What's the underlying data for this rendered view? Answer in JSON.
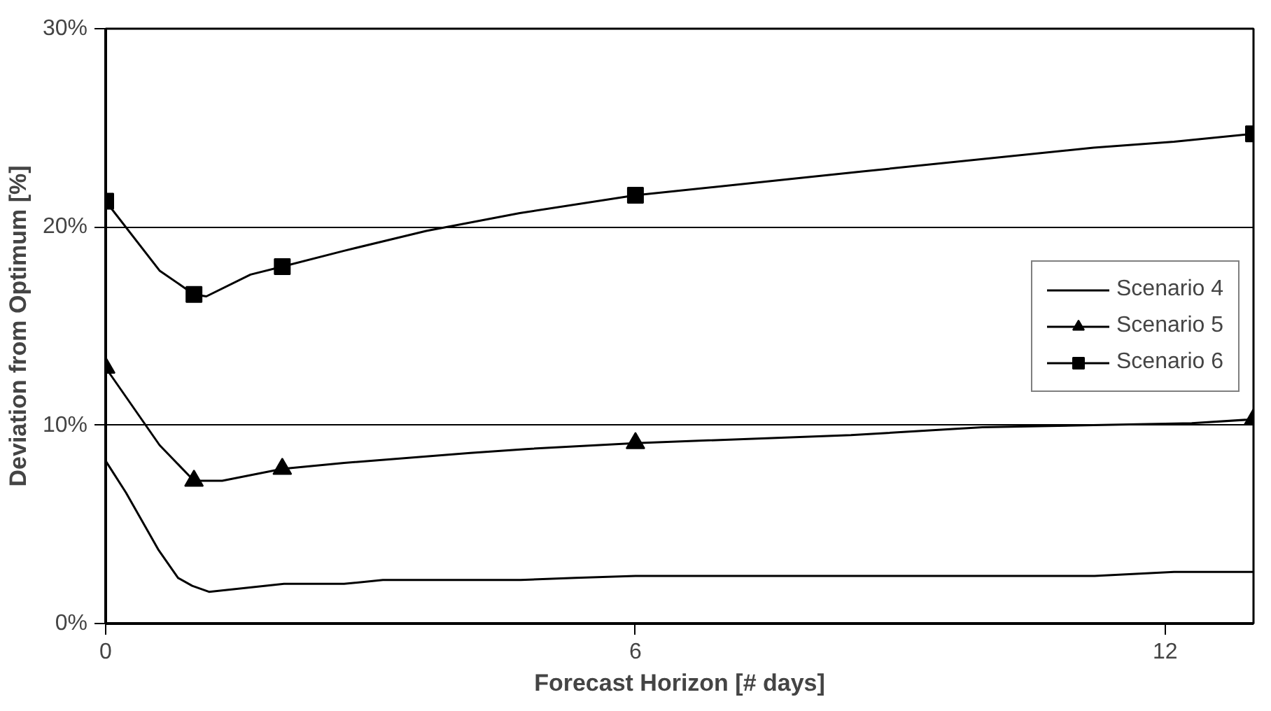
{
  "chart_data": {
    "type": "line",
    "xlabel": "Forecast Horizon [# days]",
    "ylabel": "Deviation from Optimum [%]",
    "xlim": [
      0,
      13
    ],
    "xticks": [
      0,
      6,
      12
    ],
    "ylim": [
      0,
      30
    ],
    "yticks": [
      {
        "value": 0,
        "label": "0%"
      },
      {
        "value": 10,
        "label": "10%"
      },
      {
        "value": 20,
        "label": "20%"
      },
      {
        "value": 30,
        "label": "30%"
      }
    ],
    "grid": "y",
    "legend": "right",
    "line_style": "solid",
    "series": [
      {
        "name": "Scenario 4",
        "color": "#000000",
        "marker": "none",
        "x": [
          0,
          0.23,
          0.6,
          0.82,
          0.98,
          1.17,
          2.02,
          2.7,
          3.14,
          4.7,
          5.32,
          6,
          8,
          10,
          11.2,
          12.1,
          13
        ],
        "values": [
          8.2,
          6.6,
          3.7,
          2.3,
          1.9,
          1.6,
          2.0,
          2.0,
          2.2,
          2.2,
          2.3,
          2.4,
          2.4,
          2.4,
          2.4,
          2.6,
          2.6
        ]
      },
      {
        "name": "Scenario 5",
        "color": "#000000",
        "marker": "none",
        "x": [
          0,
          0.61,
          1,
          1.32,
          2,
          2.7,
          4.13,
          4.76,
          6,
          8.44,
          9.93,
          12.3,
          13
        ],
        "values": [
          12.9,
          9.0,
          7.2,
          7.2,
          7.8,
          8.1,
          8.6,
          8.8,
          9.1,
          9.5,
          9.9,
          10.1,
          10.3
        ]
      },
      {
        "name": "Scenario 6",
        "color": "#000000",
        "marker": "none",
        "x": [
          0,
          0.61,
          1,
          1.14,
          1.64,
          2,
          2.7,
          3.63,
          4.69,
          6,
          8.57,
          11.19,
          12.1,
          13
        ],
        "values": [
          21.3,
          17.8,
          16.6,
          16.5,
          17.6,
          18.0,
          18.8,
          19.8,
          20.7,
          21.6,
          22.8,
          24.0,
          24.3,
          24.7
        ]
      },
      {
        "type": "scatter",
        "color": "#000000",
        "marker": "triangle",
        "x": [
          0,
          1,
          2,
          6,
          13
        ],
        "values": [
          12.9,
          7.2,
          7.8,
          9.1,
          10.3
        ]
      },
      {
        "type": "scatter",
        "color": "#000000",
        "marker": "square",
        "x": [
          0,
          1,
          2,
          6,
          13
        ],
        "values": [
          21.3,
          16.6,
          18.0,
          21.6,
          24.7
        ]
      }
    ]
  }
}
